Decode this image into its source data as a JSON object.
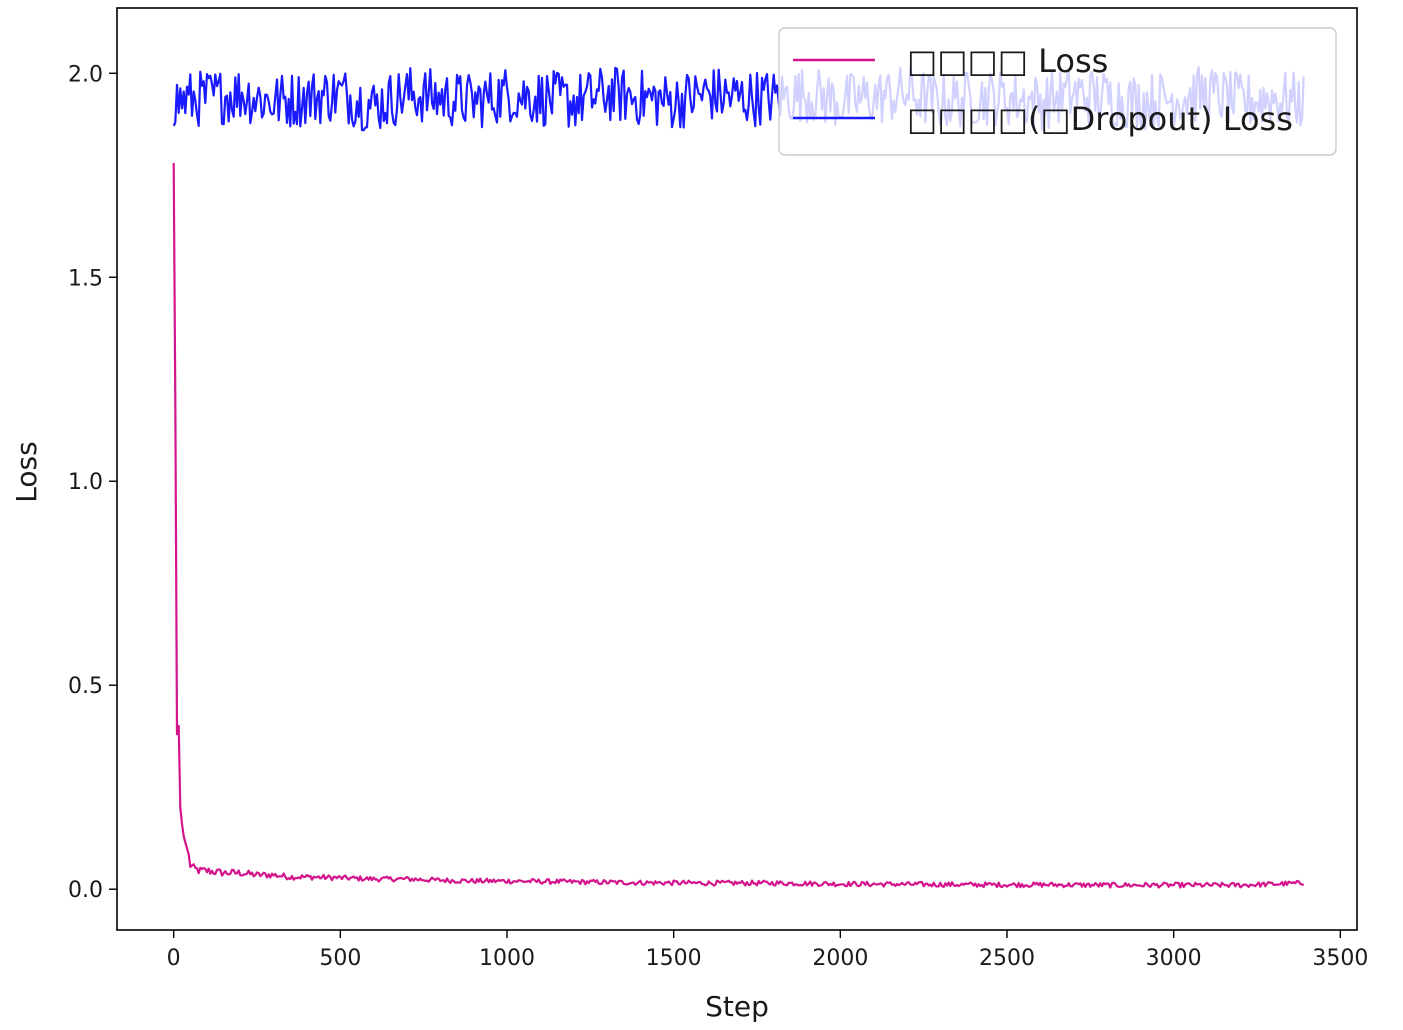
{
  "chart_data": {
    "type": "line",
    "title": "",
    "xlabel": "Step",
    "ylabel": "Loss",
    "xlim": [
      -170,
      3550
    ],
    "ylim": [
      -0.1,
      2.16
    ],
    "xticks": [
      0,
      500,
      1000,
      1500,
      2000,
      2500,
      3000,
      3500
    ],
    "yticks": [
      0.0,
      0.5,
      1.0,
      1.5,
      2.0
    ],
    "xtick_labels": [
      "0",
      "500",
      "1000",
      "1500",
      "2000",
      "2500",
      "3000",
      "3500"
    ],
    "ytick_labels": [
      "0.0",
      "0.5",
      "1.0",
      "1.5",
      "2.0"
    ],
    "grid": false,
    "legend_position": "upper right",
    "series": [
      {
        "name": "□□□□ Loss",
        "color": "#d4148c",
        "x": [
          0,
          5,
          10,
          15,
          20,
          25,
          30,
          40,
          50,
          60,
          80,
          100,
          150,
          200,
          250,
          300,
          350,
          400,
          500,
          600,
          700,
          800,
          900,
          1000,
          1200,
          1400,
          1600,
          1800,
          2000,
          2200,
          2400,
          2600,
          2800,
          3000,
          3200,
          3390
        ],
        "y": [
          1.78,
          1.2,
          0.38,
          0.4,
          0.2,
          0.16,
          0.13,
          0.1,
          0.06,
          0.05,
          0.045,
          0.045,
          0.04,
          0.04,
          0.035,
          0.035,
          0.03,
          0.03,
          0.028,
          0.025,
          0.025,
          0.022,
          0.02,
          0.02,
          0.018,
          0.016,
          0.015,
          0.015,
          0.013,
          0.012,
          0.011,
          0.011,
          0.01,
          0.01,
          0.01,
          0.015
        ]
      },
      {
        "name": "□□□□(□Dropout) Loss",
        "color": "#1a1aff",
        "x": [
          0,
          100,
          200,
          300,
          400,
          500,
          600,
          700,
          800,
          900,
          1000,
          1100,
          1200,
          1300,
          1400,
          1500,
          1600,
          1700,
          1800,
          1900,
          2000,
          2100,
          2200,
          2300,
          2400,
          2500,
          2600,
          2700,
          2800,
          2900,
          3000,
          3100,
          3200,
          3300,
          3390
        ],
        "y": [
          1.93,
          1.94,
          1.95,
          1.93,
          1.94,
          1.95,
          1.92,
          1.95,
          1.94,
          1.93,
          1.95,
          1.94,
          1.93,
          1.95,
          1.94,
          1.93,
          1.95,
          1.94,
          1.94,
          1.95,
          1.93,
          1.94,
          1.95,
          1.93,
          1.94,
          1.94,
          1.93,
          1.95,
          1.94,
          1.93,
          1.94,
          1.95,
          1.93,
          1.94,
          1.93
        ],
        "noise_amplitude": 0.07,
        "range": [
          1.8,
          2.06
        ]
      }
    ]
  }
}
